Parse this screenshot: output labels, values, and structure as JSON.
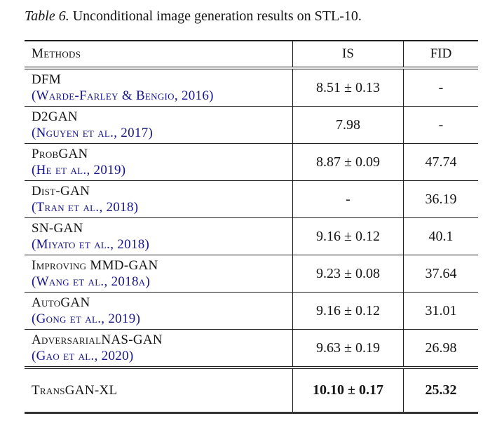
{
  "caption": {
    "label": "Table 6.",
    "text": "Unconditional image generation results on STL-10."
  },
  "colors": {
    "citation_link": "#16158b",
    "text": "#141414",
    "rule": "#1e1e1e"
  },
  "table": {
    "headers": [
      "Methods",
      "IS",
      "FID"
    ],
    "rows": [
      {
        "method": "DFM",
        "citation": "(Warde-Farley & Bengio, 2016)",
        "is": "8.51 ± 0.13",
        "fid": "-"
      },
      {
        "method": "D2GAN",
        "citation": "(Nguyen et al., 2017)",
        "is": "7.98",
        "fid": "-"
      },
      {
        "method": "ProbGAN",
        "citation": "(He et al., 2019)",
        "is": "8.87 ± 0.09",
        "fid": "47.74"
      },
      {
        "method": "Dist-GAN",
        "citation": "(Tran et al., 2018)",
        "is": "-",
        "fid": "36.19"
      },
      {
        "method": "SN-GAN",
        "citation": "(Miyato et al., 2018)",
        "is": "9.16 ± 0.12",
        "fid": "40.1"
      },
      {
        "method": "Improving MMD-GAN",
        "citation": "(Wang et al., 2018a)",
        "is": "9.23 ± 0.08",
        "fid": "37.64"
      },
      {
        "method": "AutoGAN",
        "citation": "(Gong et al., 2019)",
        "is": "9.16 ± 0.12",
        "fid": "31.01"
      },
      {
        "method": "AdversarialNAS-GAN",
        "citation": "(Gao et al., 2020)",
        "is": "9.63 ± 0.19",
        "fid": "26.98"
      }
    ],
    "footer": {
      "method": "TransGAN-XL",
      "is": "10.10 ± 0.17",
      "fid": "25.32"
    }
  }
}
